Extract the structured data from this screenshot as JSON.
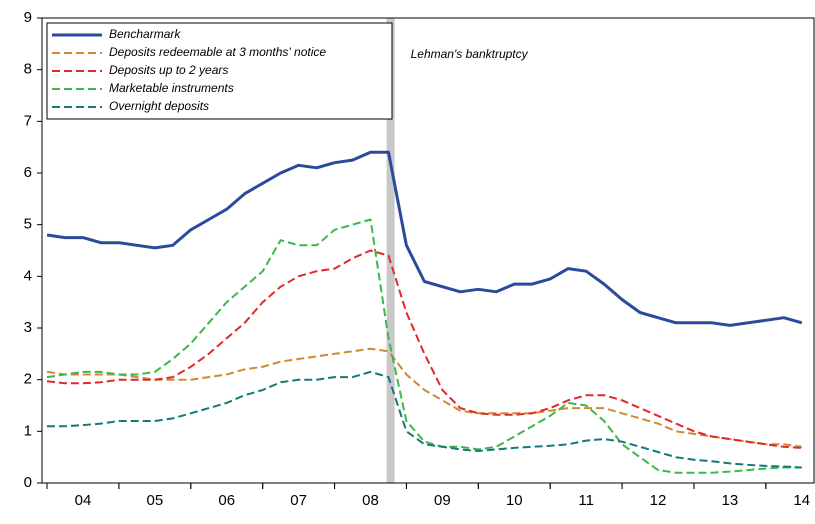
{
  "chart_data": {
    "type": "line",
    "x": [
      2004.0,
      2004.25,
      2004.5,
      2004.75,
      2005.0,
      2005.25,
      2005.5,
      2005.75,
      2006.0,
      2006.25,
      2006.5,
      2006.75,
      2007.0,
      2007.25,
      2007.5,
      2007.75,
      2008.0,
      2008.25,
      2008.5,
      2008.75,
      2009.0,
      2009.25,
      2009.5,
      2009.75,
      2010.0,
      2010.25,
      2010.5,
      2010.75,
      2011.0,
      2011.25,
      2011.5,
      2011.75,
      2012.0,
      2012.25,
      2012.5,
      2012.75,
      2013.0,
      2013.25,
      2013.5,
      2013.75,
      2014.0,
      2014.25,
      2014.5
    ],
    "series": [
      {
        "name": "Bencharmark",
        "color": "#2b4a9c",
        "dash": false,
        "width": 3,
        "values": [
          4.8,
          4.75,
          4.75,
          4.65,
          4.65,
          4.6,
          4.55,
          4.6,
          4.9,
          5.1,
          5.3,
          5.6,
          5.8,
          6.0,
          6.15,
          6.1,
          6.2,
          6.25,
          6.4,
          6.4,
          4.6,
          3.9,
          3.8,
          3.7,
          3.75,
          3.7,
          3.85,
          3.85,
          3.95,
          4.15,
          4.1,
          3.85,
          3.55,
          3.3,
          3.2,
          3.1,
          3.1,
          3.1,
          3.05,
          3.1,
          3.15,
          3.2,
          3.1
        ]
      },
      {
        "name": "Deposits redeemable at 3 months' notice",
        "color": "#d08a2e",
        "dash": true,
        "width": 2,
        "values": [
          2.15,
          2.1,
          2.1,
          2.1,
          2.1,
          2.05,
          2.0,
          2.0,
          2.0,
          2.05,
          2.1,
          2.2,
          2.25,
          2.35,
          2.4,
          2.45,
          2.5,
          2.55,
          2.6,
          2.55,
          2.1,
          1.8,
          1.6,
          1.4,
          1.35,
          1.35,
          1.35,
          1.35,
          1.4,
          1.45,
          1.45,
          1.45,
          1.35,
          1.25,
          1.15,
          1.0,
          0.95,
          0.9,
          0.85,
          0.8,
          0.75,
          0.75,
          0.7
        ]
      },
      {
        "name": "Deposits up to 2 years",
        "color": "#e02a2a",
        "dash": true,
        "width": 2,
        "values": [
          1.97,
          1.93,
          1.93,
          1.95,
          2.0,
          2.0,
          2.0,
          2.05,
          2.25,
          2.5,
          2.8,
          3.1,
          3.5,
          3.8,
          4.0,
          4.1,
          4.15,
          4.35,
          4.5,
          4.4,
          3.3,
          2.5,
          1.8,
          1.45,
          1.35,
          1.32,
          1.32,
          1.35,
          1.45,
          1.6,
          1.7,
          1.7,
          1.6,
          1.45,
          1.3,
          1.15,
          1.0,
          0.9,
          0.85,
          0.8,
          0.75,
          0.7,
          0.68
        ]
      },
      {
        "name": "Marketable instruments",
        "color": "#3cb84a",
        "dash": true,
        "width": 2,
        "values": [
          2.05,
          2.1,
          2.15,
          2.15,
          2.1,
          2.1,
          2.15,
          2.4,
          2.7,
          3.1,
          3.5,
          3.8,
          4.1,
          4.7,
          4.6,
          4.6,
          4.9,
          5.0,
          5.1,
          2.8,
          1.2,
          0.8,
          0.7,
          0.7,
          0.65,
          0.7,
          0.9,
          1.1,
          1.3,
          1.55,
          1.5,
          1.2,
          0.75,
          0.5,
          0.25,
          0.2,
          0.2,
          0.2,
          0.22,
          0.25,
          0.28,
          0.3,
          0.3
        ]
      },
      {
        "name": "Overnight deposits",
        "color": "#137a7a",
        "dash": true,
        "width": 2,
        "values": [
          1.1,
          1.1,
          1.12,
          1.15,
          1.2,
          1.2,
          1.2,
          1.25,
          1.35,
          1.45,
          1.55,
          1.7,
          1.8,
          1.95,
          2.0,
          2.0,
          2.05,
          2.05,
          2.15,
          2.05,
          1.0,
          0.75,
          0.7,
          0.65,
          0.62,
          0.65,
          0.68,
          0.7,
          0.72,
          0.75,
          0.82,
          0.85,
          0.8,
          0.7,
          0.6,
          0.5,
          0.45,
          0.42,
          0.38,
          0.35,
          0.33,
          0.32,
          0.3
        ]
      }
    ],
    "xlim": [
      2003.93,
      2014.67
    ],
    "xticks": [
      {
        "value": 2004.5,
        "label": "04"
      },
      {
        "value": 2005.5,
        "label": "05"
      },
      {
        "value": 2006.5,
        "label": "06"
      },
      {
        "value": 2007.5,
        "label": "07"
      },
      {
        "value": 2008.5,
        "label": "08"
      },
      {
        "value": 2009.5,
        "label": "09"
      },
      {
        "value": 2010.5,
        "label": "10"
      },
      {
        "value": 2011.5,
        "label": "11"
      },
      {
        "value": 2012.5,
        "label": "12"
      },
      {
        "value": 2013.5,
        "label": "13"
      },
      {
        "value": 2014.5,
        "label": "14"
      }
    ],
    "ylim": [
      0,
      9
    ],
    "yticks": [
      0,
      1,
      2,
      3,
      4,
      5,
      6,
      7,
      8,
      9
    ],
    "annotation": {
      "text": "Lehman's banktruptcy",
      "x": 2008.78,
      "color": "#c8c8c8"
    },
    "legend": "top-left"
  }
}
